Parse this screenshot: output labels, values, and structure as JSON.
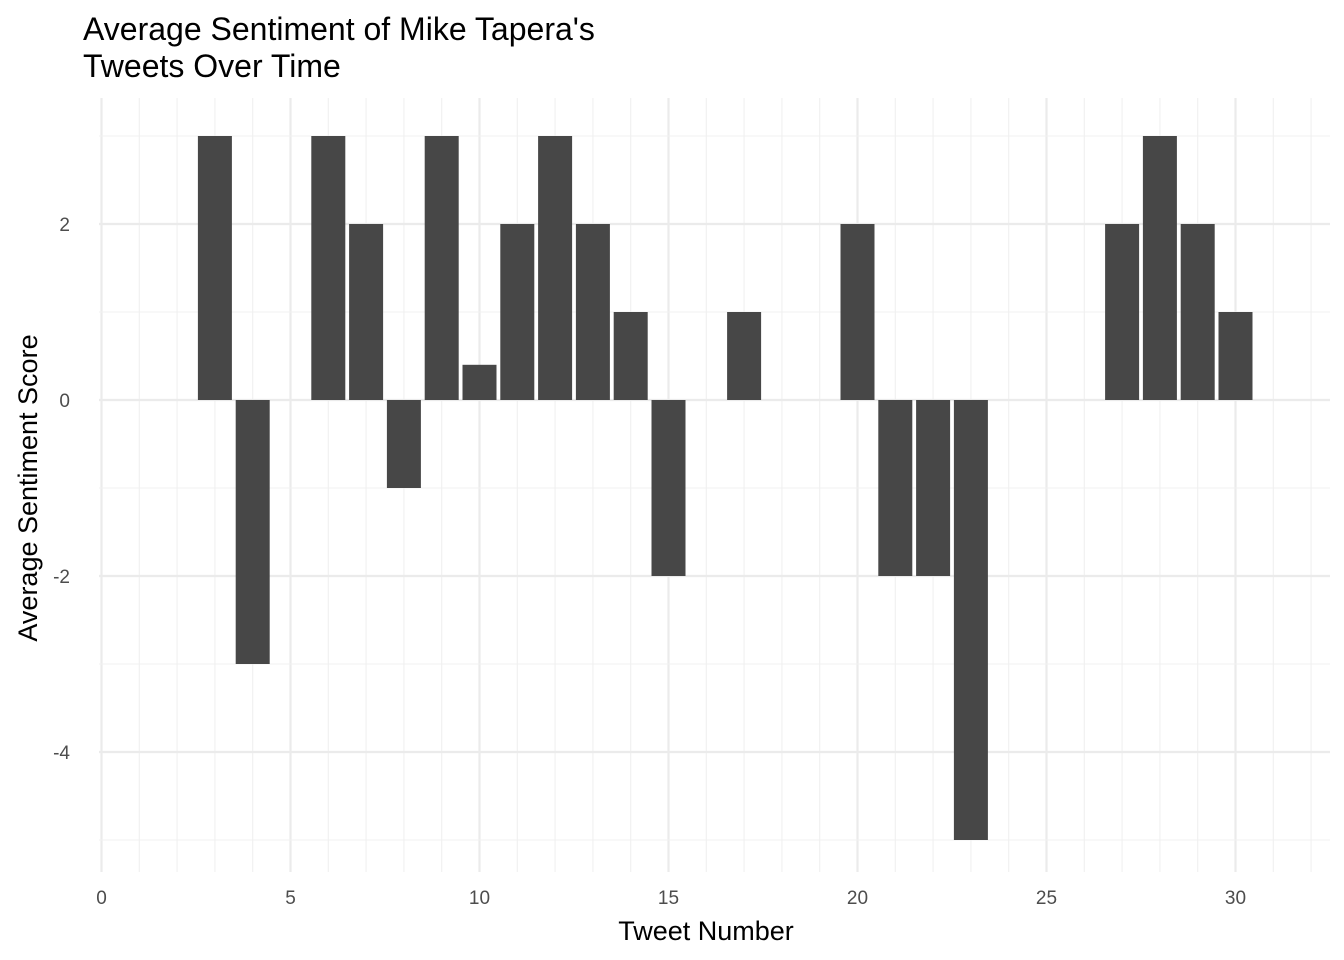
{
  "chart_data": {
    "type": "bar",
    "title": [
      "Average Sentiment of Mike Tapera's",
      "Tweets Over Time"
    ],
    "xlabel": "Tweet Number",
    "ylabel": "Average Sentiment Score",
    "xlim": [
      0,
      32
    ],
    "ylim": [
      -5,
      3
    ],
    "x_ticks": [
      0,
      5,
      10,
      15,
      20,
      25,
      30
    ],
    "y_ticks": [
      -4,
      -2,
      0,
      2
    ],
    "x_tick_labels": [
      "0",
      "5",
      "10",
      "15",
      "20",
      "25",
      "30"
    ],
    "y_tick_labels": [
      "-4",
      "-2",
      "0",
      "2"
    ],
    "grid": true,
    "bar_color": "#474747",
    "x": [
      3,
      4,
      6,
      7,
      8,
      9,
      10,
      11,
      12,
      13,
      14,
      15,
      17,
      20,
      21,
      22,
      23,
      27,
      28,
      29,
      30
    ],
    "values": [
      3,
      -3,
      3,
      2,
      -1,
      3,
      0.4,
      2,
      3,
      2,
      1,
      -2,
      1,
      2,
      -2,
      -2,
      -5,
      2,
      3,
      2,
      1
    ]
  }
}
